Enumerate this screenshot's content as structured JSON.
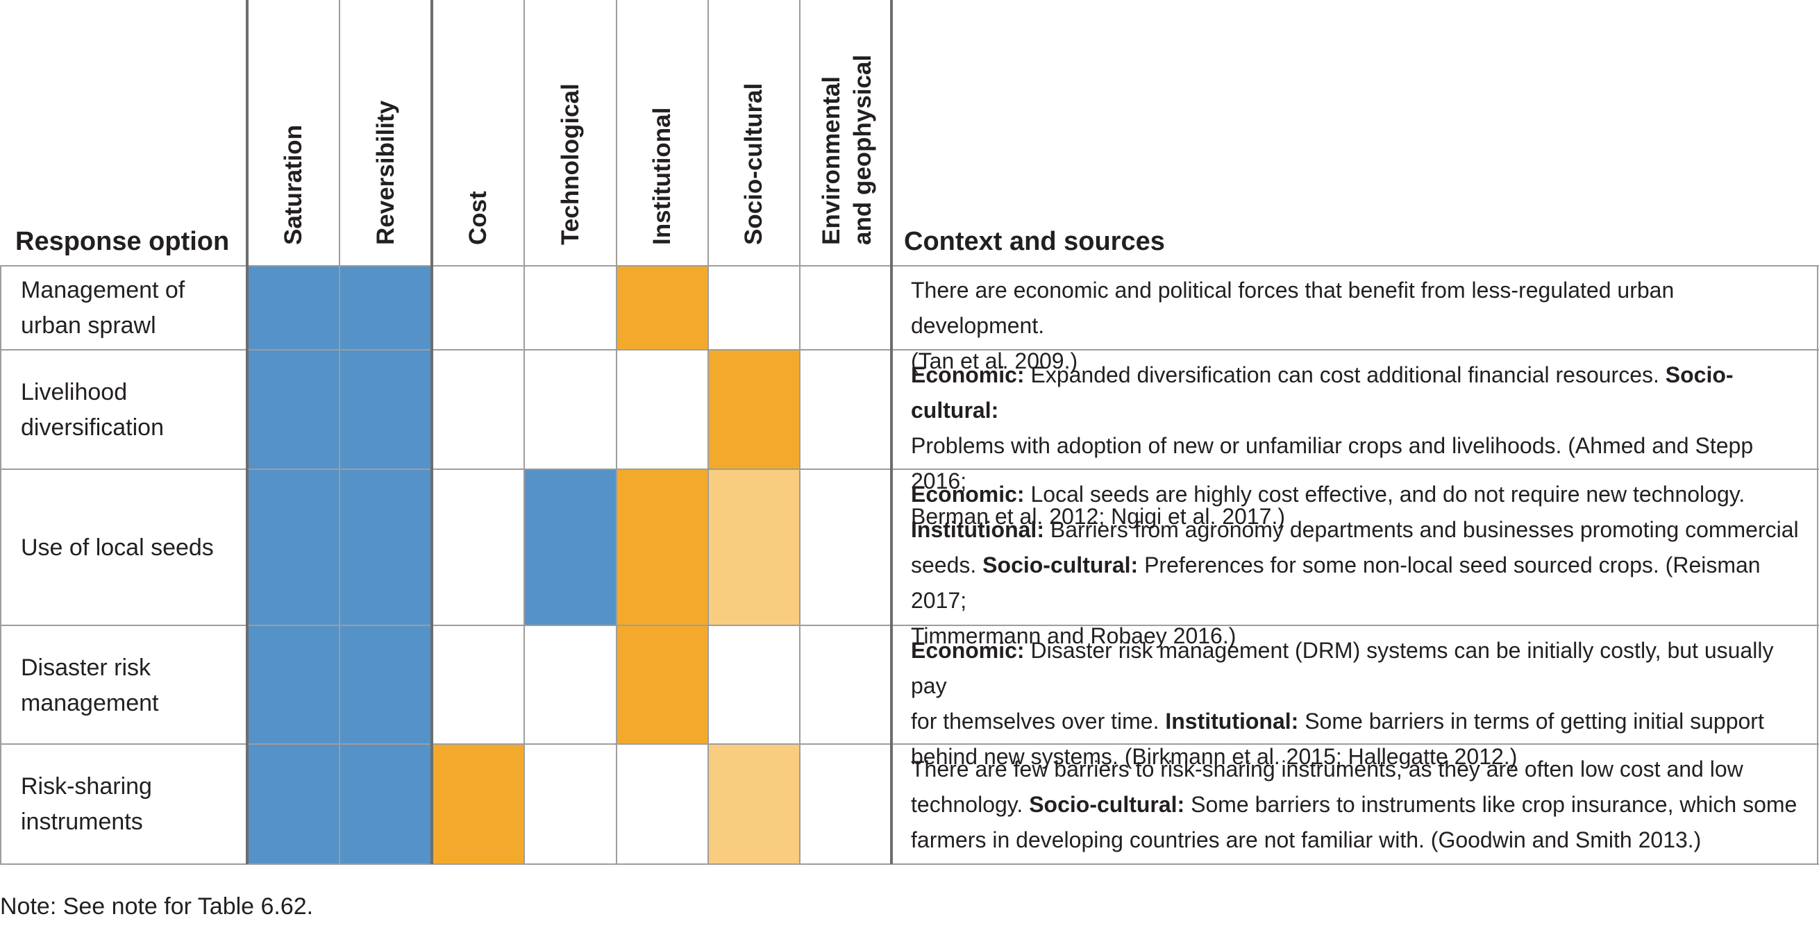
{
  "colors": {
    "blue": "#5592c8",
    "orange": "#f3aa2c",
    "light_orange": "#f9cd80",
    "empty": "#ffffff"
  },
  "headers": {
    "response_option": "Response option",
    "context": "Context and sources",
    "columns": [
      "Saturation",
      "Reversibility",
      "Cost",
      "Technological",
      "Institutional",
      "Socio-cultural"
    ],
    "env_line1": "Environmental",
    "env_line2": "and geophysical"
  },
  "rows": [
    {
      "label_line1": "Management of",
      "label_line2": "urban sprawl",
      "cells": [
        "blue",
        "blue",
        "empty",
        "empty",
        "orange",
        "empty",
        "empty"
      ],
      "context_l1": "There are economic and political forces that benefit from less-regulated urban development.",
      "context_l2": "(Tan et al. 2009.)"
    },
    {
      "label_line1": "Livelihood",
      "label_line2": "diversification",
      "cells": [
        "blue",
        "blue",
        "empty",
        "empty",
        "empty",
        "orange",
        "empty"
      ],
      "ctx_b1": "Economic:",
      "ctx_t1": " Expanded diversification can cost additional financial resources. ",
      "ctx_b2": "Socio-cultural:",
      "ctx_t2": "Problems with adoption of new or unfamiliar crops and livelihoods. (Ahmed and Stepp 2016;",
      "ctx_t3": "Berman et al. 2012; Ngigi et al. 2017.)"
    },
    {
      "label": "Use of local seeds",
      "cells": [
        "blue",
        "blue",
        "empty",
        "blue",
        "orange",
        "light_orange",
        "empty"
      ],
      "ctx_b1": "Economic:",
      "ctx_t1": " Local seeds are highly cost effective, and do not require new technology.",
      "ctx_b2": "Institutional:",
      "ctx_t2": " Barriers from agronomy departments and businesses promoting commercial",
      "ctx_t3": "seeds. ",
      "ctx_b3": "Socio-cultural:",
      "ctx_t4": " Preferences for some non-local seed sourced crops. (Reisman 2017;",
      "ctx_t5": "Timmermann and Robaey 2016.)"
    },
    {
      "label_line1": "Disaster risk",
      "label_line2": "management",
      "cells": [
        "blue",
        "blue",
        "empty",
        "empty",
        "orange",
        "empty",
        "empty"
      ],
      "ctx_b1": "Economic:",
      "ctx_t1": " Disaster risk management (DRM) systems can be initially costly, but usually pay",
      "ctx_t2": "for themselves over time. ",
      "ctx_b2": "Institutional:",
      "ctx_t3": " Some barriers in terms of getting initial support",
      "ctx_t4": "behind new systems. (Birkmann et al. 2015; Hallegatte 2012.)"
    },
    {
      "label_line1": "Risk-sharing",
      "label_line2": "instruments",
      "cells": [
        "blue",
        "blue",
        "orange",
        "empty",
        "empty",
        "light_orange",
        "empty"
      ],
      "ctx_t1": "There are few barriers to risk-sharing instruments, as they are often low cost and low",
      "ctx_t2": "technology. ",
      "ctx_b1": "Socio-cultural:",
      "ctx_t3": " Some barriers to instruments like crop insurance, which some",
      "ctx_t4": "farmers in developing countries are not familiar with. (Goodwin and Smith 2013.)"
    }
  ],
  "note": "Note: See note for Table 6.62."
}
